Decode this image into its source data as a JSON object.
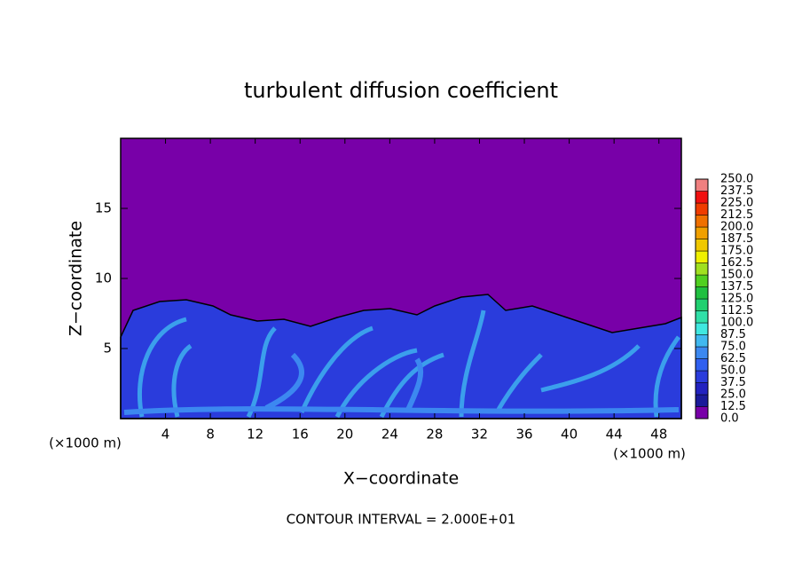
{
  "chart_data": {
    "type": "contour",
    "title": "turbulent diffusion coefficient",
    "xlabel": "X−coordinate",
    "ylabel": "Z−coordinate",
    "x_unit": "(×1000 m)",
    "y_unit": "(×1000 m)",
    "footnote": "CONTOUR INTERVAL = 2.000E+01",
    "xlim": [
      0,
      50
    ],
    "xticks": [
      4,
      8,
      12,
      16,
      20,
      24,
      28,
      32,
      36,
      40,
      44,
      48
    ],
    "ylim": [
      0,
      20
    ],
    "yticks": [
      5,
      10,
      15
    ],
    "colorbar": {
      "levels": [
        {
          "value": 0,
          "label": "0.0"
        },
        12.5,
        {
          "value": 25,
          "label": "25.0"
        },
        37.5,
        {
          "value": 50,
          "label": "50.0"
        },
        62.5,
        {
          "value": 75,
          "label": "75.0"
        },
        87.5,
        {
          "value": 100,
          "label": "100.0"
        },
        112.5,
        {
          "value": 125,
          "label": "125.0"
        },
        137.5,
        {
          "value": 150,
          "label": "150.0"
        },
        162.5,
        {
          "value": 175,
          "label": "175.0"
        },
        187.5,
        {
          "value": 200,
          "label": "200.0"
        },
        212.5,
        {
          "value": 225,
          "label": "225.0"
        },
        237.5,
        {
          "value": 250,
          "label": "250.0"
        }
      ],
      "colors": [
        "#7800a8",
        "#1a1a9a",
        "#2222c0",
        "#2a3cdc",
        "#3060f0",
        "#3c88f0",
        "#40b8f0",
        "#40e8e0",
        "#30e0a8",
        "#20d070",
        "#20c040",
        "#50d020",
        "#a0e020",
        "#f0f000",
        "#f0c800",
        "#f0a000",
        "#f07000",
        "#f03c00",
        "#f01010",
        "#f08080"
      ]
    }
  }
}
